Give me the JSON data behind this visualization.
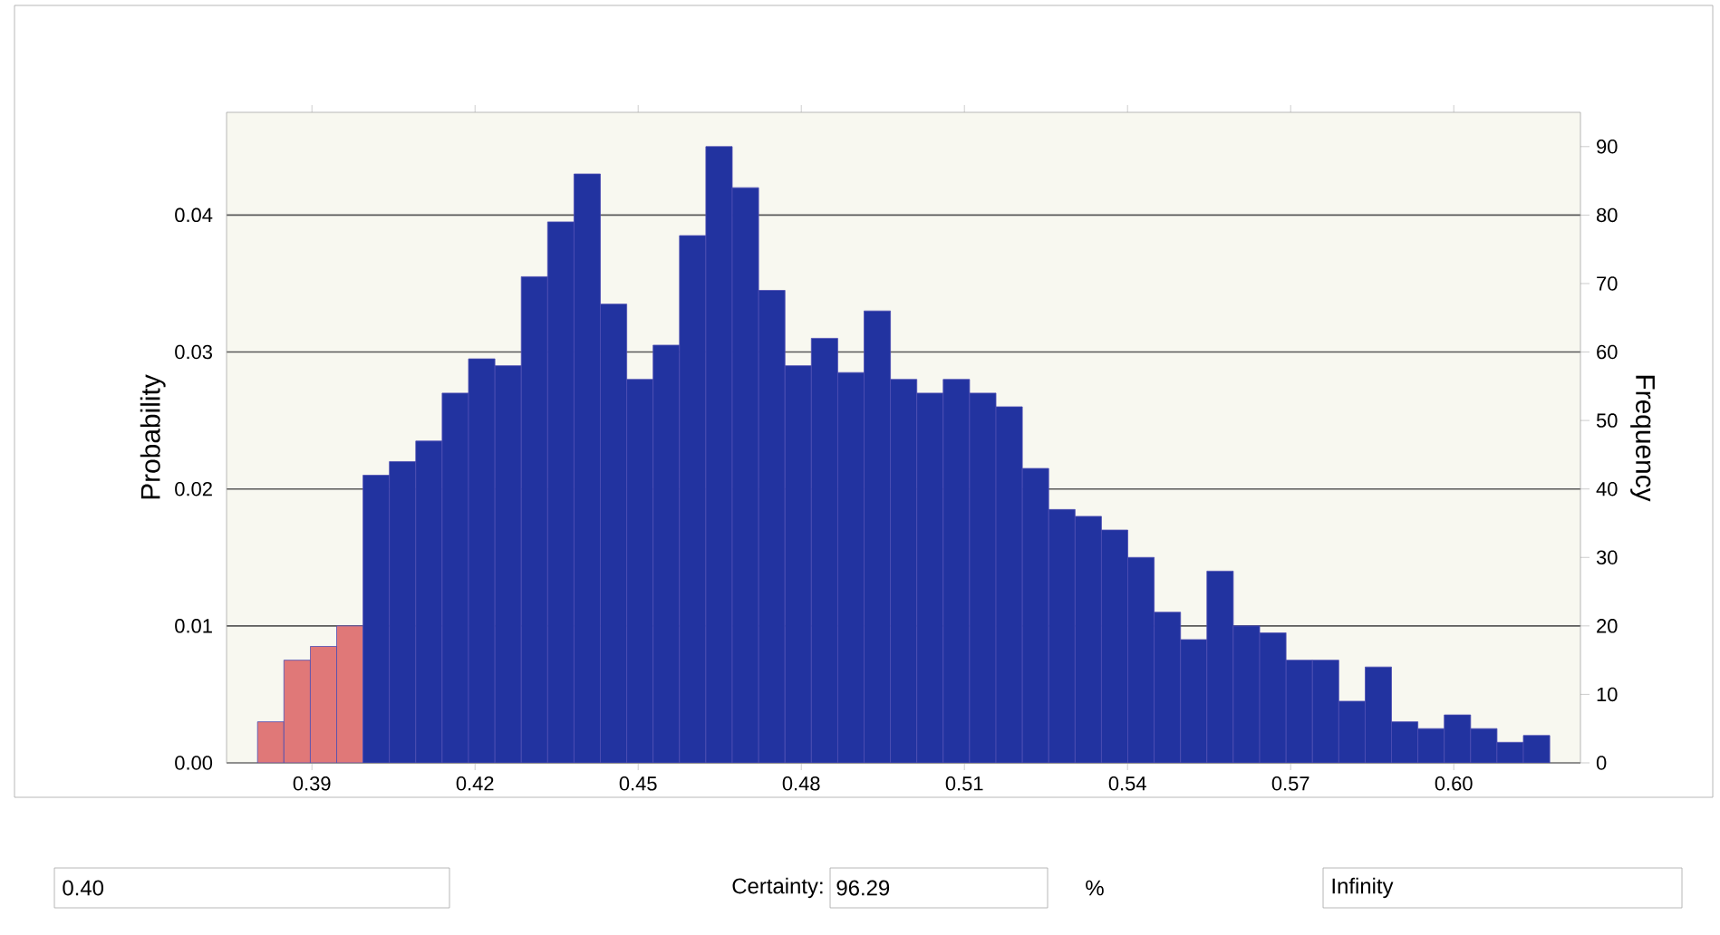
{
  "chart_data": {
    "type": "histogram",
    "xlim": [
      0.3743,
      0.6233
    ],
    "xticks": [
      {
        "value": 0.39,
        "label": "0.39"
      },
      {
        "value": 0.42,
        "label": "0.42"
      },
      {
        "value": 0.45,
        "label": "0.45"
      },
      {
        "value": 0.48,
        "label": "0.48"
      },
      {
        "value": 0.51,
        "label": "0.51"
      },
      {
        "value": 0.54,
        "label": "0.54"
      },
      {
        "value": 0.57,
        "label": "0.57"
      },
      {
        "value": 0.6,
        "label": "0.60"
      }
    ],
    "ylabel": "Probability",
    "ylim": [
      0,
      0.0475
    ],
    "yticks": [
      {
        "value": 0,
        "label": "0.00"
      },
      {
        "value": 0.01,
        "label": "0.01"
      },
      {
        "value": 0.02,
        "label": "0.02"
      },
      {
        "value": 0.03,
        "label": "0.03"
      },
      {
        "value": 0.04,
        "label": "0.04"
      }
    ],
    "y2label": "Frequency",
    "y2lim": [
      0,
      95
    ],
    "y2ticks": [
      0,
      10,
      20,
      30,
      40,
      50,
      60,
      70,
      80,
      90
    ],
    "grid": "y",
    "bins": [
      0.38,
      0.38485,
      0.3897,
      0.39455,
      0.3994,
      0.40425,
      0.4091,
      0.41395,
      0.4188,
      0.42365,
      0.4285,
      0.43335,
      0.4382,
      0.44305,
      0.4479,
      0.45275,
      0.4576,
      0.46245,
      0.4673,
      0.47215,
      0.477,
      0.48185,
      0.4867,
      0.49155,
      0.4964,
      0.50125,
      0.5061,
      0.51095,
      0.5158,
      0.52065,
      0.5255,
      0.53035,
      0.5352,
      0.54005,
      0.5449,
      0.54975,
      0.5546,
      0.55945,
      0.5643,
      0.56915,
      0.574,
      0.57885,
      0.5837,
      0.58855,
      0.5934,
      0.59825,
      0.6031,
      0.60795,
      0.6128,
      0.61765
    ],
    "series": [
      {
        "axis": "y2",
        "values": [
          6,
          15,
          17,
          20,
          42,
          44,
          47,
          54,
          59,
          58,
          71,
          79,
          86,
          67,
          56,
          61,
          77,
          90,
          84,
          69,
          58,
          62,
          57,
          66,
          56,
          54,
          56,
          54,
          52,
          43,
          37,
          36,
          34,
          30,
          22,
          18,
          28,
          20,
          19,
          15,
          15,
          9,
          14,
          6,
          5,
          7,
          5,
          3,
          4
        ],
        "colors": [
          "#e07878",
          "#e07878",
          "#e07878",
          "#e07878",
          "#2233a0",
          "#2233a0",
          "#2233a0",
          "#2233a0",
          "#2233a0",
          "#2233a0",
          "#2233a0",
          "#2233a0",
          "#2233a0",
          "#2233a0",
          "#2233a0",
          "#2233a0",
          "#2233a0",
          "#2233a0",
          "#2233a0",
          "#2233a0",
          "#2233a0",
          "#2233a0",
          "#2233a0",
          "#2233a0",
          "#2233a0",
          "#2233a0",
          "#2233a0",
          "#2233a0",
          "#2233a0",
          "#2233a0",
          "#2233a0",
          "#2233a0",
          "#2233a0",
          "#2233a0",
          "#2233a0",
          "#2233a0",
          "#2233a0",
          "#2233a0",
          "#2233a0",
          "#2233a0",
          "#2233a0",
          "#2233a0",
          "#2233a0",
          "#2233a0",
          "#2233a0",
          "#2233a0",
          "#2233a0",
          "#2233a0",
          "#2233a0"
        ]
      }
    ],
    "annotations": [
      "0.40",
      "Certainty:",
      "96.29",
      "%",
      "Infinity"
    ]
  }
}
